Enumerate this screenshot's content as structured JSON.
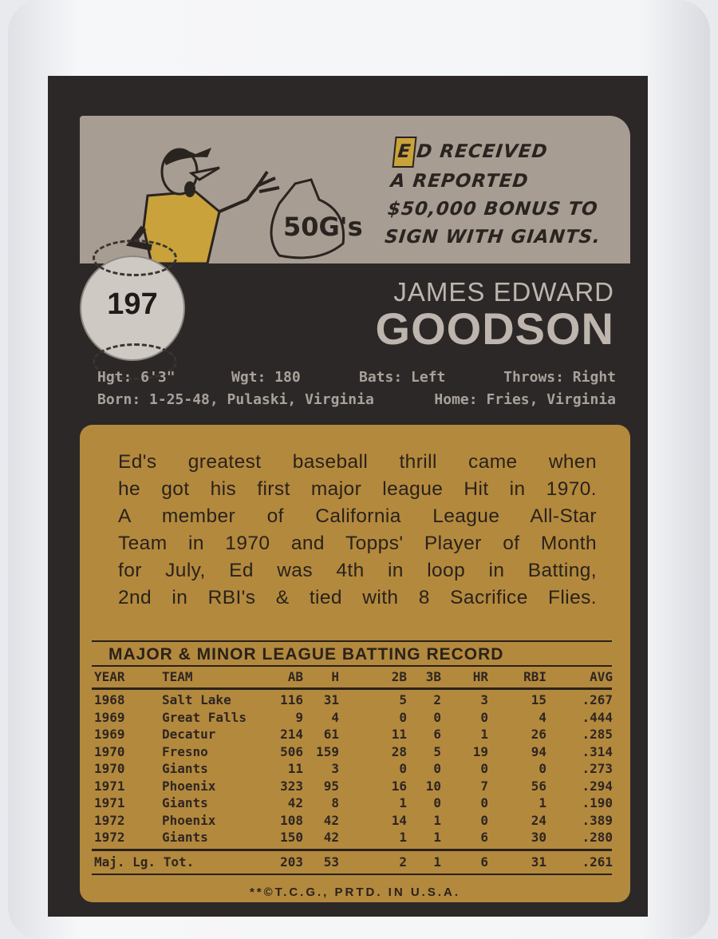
{
  "card_number": "197",
  "cartoon": {
    "bag_label": "50G's",
    "caption_initial": "E",
    "caption_lines": [
      "D RECEIVED",
      "A REPORTED",
      "$50,000 BONUS TO",
      "SIGN WITH GIANTS."
    ]
  },
  "player": {
    "first_names": "JAMES EDWARD",
    "last_name": "GOODSON"
  },
  "vitals": {
    "height": "Hgt: 6'3\"",
    "weight": "Wgt: 180",
    "bats": "Bats: Left",
    "throws": "Throws: Right",
    "born": "Born: 1-25-48, Pulaski, Virginia",
    "home": "Home: Fries, Virginia"
  },
  "bio_lines": [
    "Ed's greatest baseball thrill came when",
    "he got his first major league Hit in 1970.",
    "A member of California League All-Star",
    "Team in 1970 and Topps' Player of Month",
    "for July, Ed was 4th in loop in Batting,",
    "2nd in RBI's & tied with 8 Sacrifice Flies."
  ],
  "record": {
    "title": "MAJOR & MINOR LEAGUE BATTING RECORD",
    "columns": [
      "YEAR",
      "TEAM",
      "AB",
      "H",
      "2B",
      "3B",
      "HR",
      "RBI",
      "AVG"
    ],
    "rows": [
      [
        "1968",
        "Salt Lake",
        "116",
        "31",
        "5",
        "2",
        "3",
        "15",
        ".267"
      ],
      [
        "1969",
        "Great Falls",
        "9",
        "4",
        "0",
        "0",
        "0",
        "4",
        ".444"
      ],
      [
        "1969",
        "Decatur",
        "214",
        "61",
        "11",
        "6",
        "1",
        "26",
        ".285"
      ],
      [
        "1970",
        "Fresno",
        "506",
        "159",
        "28",
        "5",
        "19",
        "94",
        ".314"
      ],
      [
        "1970",
        "Giants",
        "11",
        "3",
        "0",
        "0",
        "0",
        "0",
        ".273"
      ],
      [
        "1971",
        "Phoenix",
        "323",
        "95",
        "16",
        "10",
        "7",
        "56",
        ".294"
      ],
      [
        "1971",
        "Giants",
        "42",
        "8",
        "1",
        "0",
        "0",
        "1",
        ".190"
      ],
      [
        "1972",
        "Phoenix",
        "108",
        "42",
        "14",
        "1",
        "0",
        "24",
        ".389"
      ],
      [
        "1972",
        "Giants",
        "150",
        "42",
        "1",
        "1",
        "6",
        "30",
        ".280"
      ]
    ],
    "total": [
      "Maj. Lg. Tot.",
      "203",
      "53",
      "2",
      "1",
      "6",
      "31",
      ".261"
    ]
  },
  "footer": "**©T.C.G., PRTD. IN U.S.A.",
  "colors": {
    "card_border": "#2c2827",
    "cartoon_panel": "#a89d93",
    "text_panel": "#b3893e",
    "accent_yellow": "#c9a23c"
  }
}
